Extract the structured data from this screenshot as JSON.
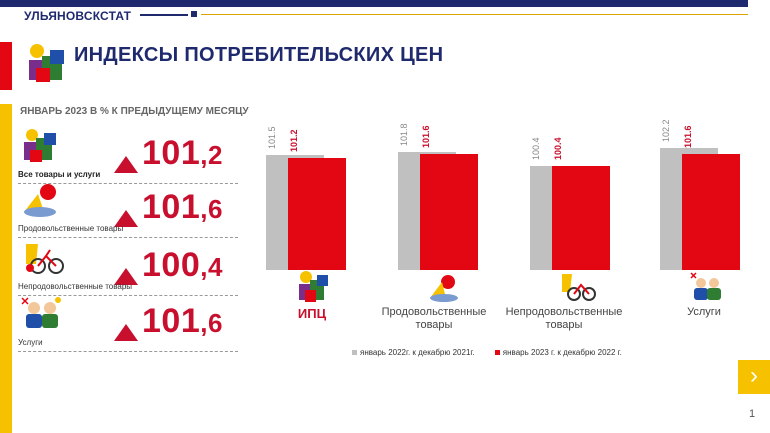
{
  "header": {
    "brand": "УЛЬЯНОВСКСТАТ",
    "title": "ИНДЕКСЫ ПОТРЕБИТЕЛЬСКИХ ЦЕН"
  },
  "sidebar": {
    "subtitle": "ЯНВАРЬ 2023 В % К ПРЕДЫДУЩЕМУ МЕСЯЦУ",
    "items": [
      {
        "label": "Все товары и услуги",
        "int": "101",
        "frac": ",2",
        "icon": "gift-boxes-icon"
      },
      {
        "label": "Продовольственные товары",
        "int": "101",
        "frac": ",6",
        "icon": "groceries-icon"
      },
      {
        "label": "Непродовольственные товары",
        "int": "100",
        "frac": ",4",
        "icon": "bicycle-icon"
      },
      {
        "label": "Услуги",
        "int": "101",
        "frac": ",6",
        "icon": "services-people-icon"
      }
    ]
  },
  "chart_data": {
    "type": "bar",
    "categories": [
      "ИПЦ",
      "Продовольственные товары",
      "Непродовольственные товары",
      "Услуги"
    ],
    "series": [
      {
        "name": "январь 2022г. к декабрю 2021г.",
        "values": [
          101.5,
          101.8,
          100.4,
          102.2
        ],
        "color": "#c0c0c0"
      },
      {
        "name": "январь 2023 г. к декабрю 2022 г.",
        "values": [
          101.2,
          101.6,
          100.4,
          101.6
        ],
        "color": "#e30613"
      }
    ],
    "data_labels": true,
    "legend": "bottom",
    "grid": false
  },
  "category_labels": [
    {
      "line1": "ИПЦ",
      "line2": ""
    },
    {
      "line1": "Продовольственные",
      "line2": "товары"
    },
    {
      "line1": "Непродовольственные",
      "line2": "товары"
    },
    {
      "line1": "Услуги",
      "line2": ""
    }
  ],
  "nav": {
    "next_icon": "chevron-right-icon",
    "page": "1"
  },
  "colors": {
    "navy": "#1f2a6e",
    "red": "#e30613",
    "gold": "#f6c200",
    "grey": "#c0c0c0"
  }
}
